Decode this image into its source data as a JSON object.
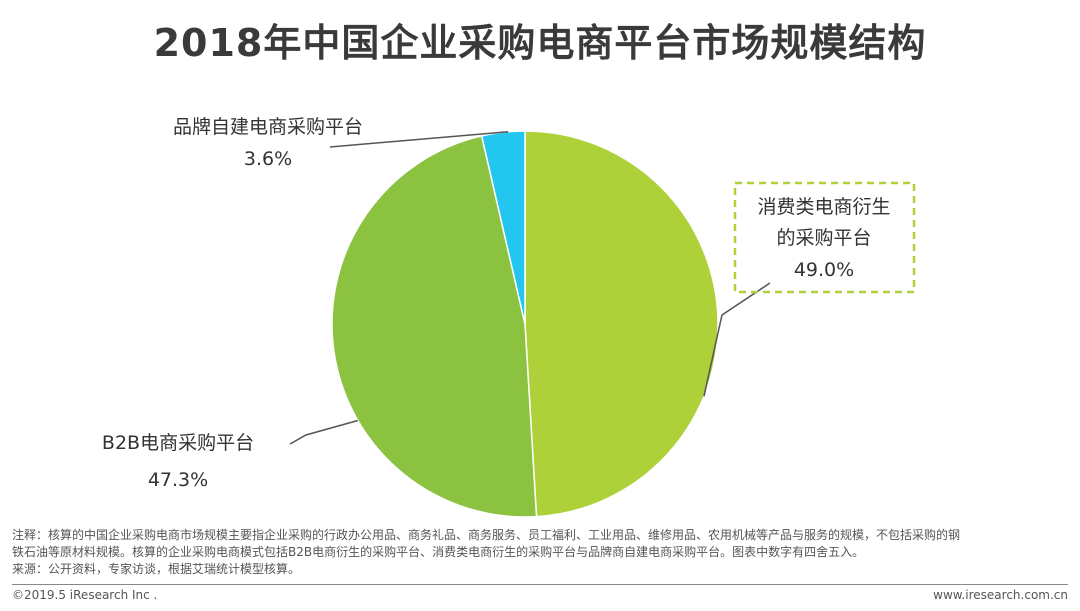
{
  "title": "2018年中国企业采购电商平台市场规模结构",
  "chart_data": {
    "type": "pie",
    "title": "2018年中国企业采购电商平台市场规模结构",
    "slices": [
      {
        "label_lines": [
          "消费类电商衍生",
          "的采购平台"
        ],
        "label": "消费类电商衍生的采购平台",
        "value": 49.0,
        "value_label": "49.0%",
        "color": "#aed039"
      },
      {
        "label_lines": [
          "B2B电商采购平台"
        ],
        "label": "B2B电商采购平台",
        "value": 47.3,
        "value_label": "47.3%",
        "color": "#8bc23f"
      },
      {
        "label_lines": [
          "品牌自建电商采购平台"
        ],
        "label": "品牌自建电商采购平台",
        "value": 3.6,
        "value_label": "3.6%",
        "color": "#22c6ef"
      }
    ],
    "legend": "none"
  },
  "notes": {
    "line1": "注释：核算的中国企业采购电商市场规模主要指企业采购的行政办公用品、商务礼品、商务服务、员工福利、工业用品、维修用品、农用机械等产品与服务的规模，不包括采购的钢",
    "line2": "铁石油等原材料规模。核算的企业采购电商模式包括B2B电商衍生的采购平台、消费类电商衍生的采购平台与品牌商自建电商采购平台。图表中数字有四舍五入。",
    "line3": "来源：公开资料，专家访谈，根据艾瑞统计模型核算。"
  },
  "footer": {
    "copyright": "©2019.5 iResearch Inc .",
    "site": "www.iresearch.com.cn"
  }
}
